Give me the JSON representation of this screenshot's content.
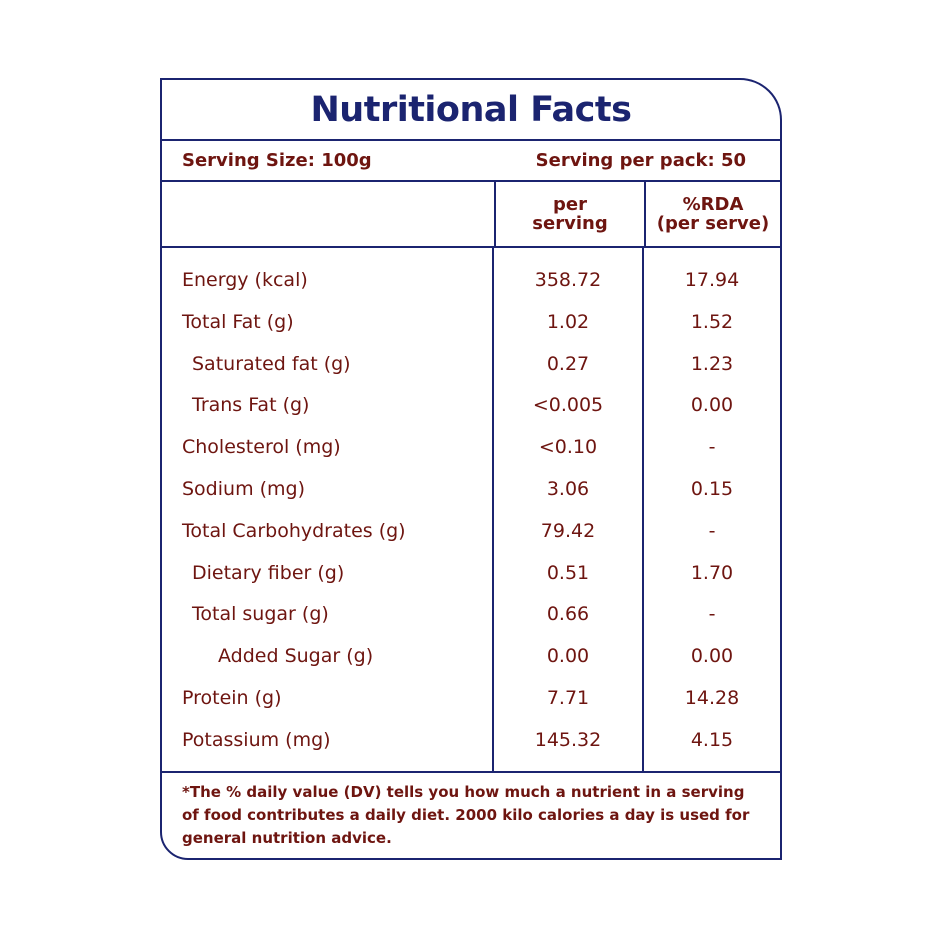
{
  "title": "Nutritional Facts",
  "serving_size": "Serving Size: 100g",
  "serving_per_pack": "Serving per pack: 50",
  "columns": {
    "per_serving": [
      "per",
      "serving"
    ],
    "rda": [
      "%RDA",
      "(per serve)"
    ]
  },
  "rows": [
    {
      "name": "Energy (kcal)",
      "per": "358.72",
      "rda": "17.94",
      "indent": 0
    },
    {
      "name": "Total Fat (g)",
      "per": "1.02",
      "rda": "1.52",
      "indent": 0
    },
    {
      "name": "Saturated fat (g)",
      "per": "0.27",
      "rda": "1.23",
      "indent": 1
    },
    {
      "name": "Trans Fat (g)",
      "per": "<0.005",
      "rda": "0.00",
      "indent": 1
    },
    {
      "name": "Cholesterol (mg)",
      "per": "<0.10",
      "rda": "-",
      "indent": 0
    },
    {
      "name": "Sodium (mg)",
      "per": "3.06",
      "rda": "0.15",
      "indent": 0
    },
    {
      "name": "Total Carbohydrates  (g)",
      "per": "79.42",
      "rda": "-",
      "indent": 0
    },
    {
      "name": "Dietary fiber (g)",
      "per": "0.51",
      "rda": "1.70",
      "indent": 1
    },
    {
      "name": "Total sugar (g)",
      "per": "0.66",
      "rda": "-",
      "indent": 1
    },
    {
      "name": "Added Sugar (g)",
      "per": "0.00",
      "rda": "0.00",
      "indent": 2
    },
    {
      "name": "Protein (g)",
      "per": "7.71",
      "rda": "14.28",
      "indent": 0
    },
    {
      "name": "Potassium (mg)",
      "per": "145.32",
      "rda": "4.15",
      "indent": 0
    }
  ],
  "footnote": [
    "*The % daily value (DV) tells you how much a nutrient in a serving",
    "of food contributes a daily diet. 2000 kilo calories a day is used for",
    "general nutrition advice."
  ],
  "colors": {
    "border": "#1b2470",
    "text": "#6e1510"
  }
}
